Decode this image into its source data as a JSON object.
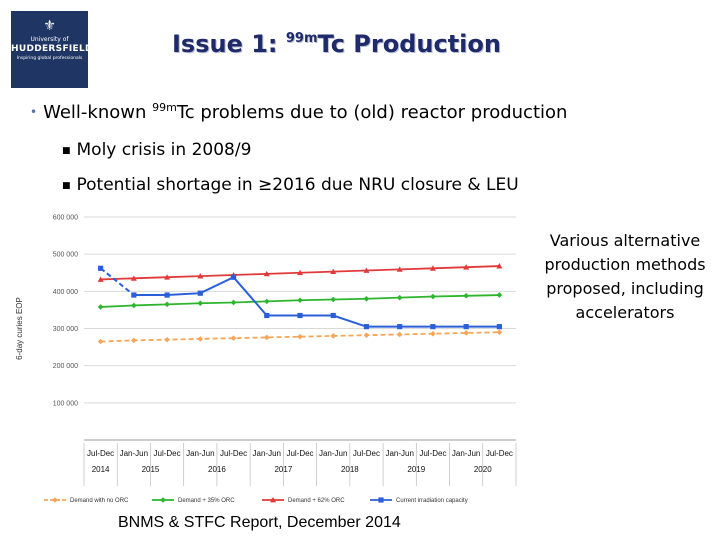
{
  "logo": {
    "line1": "University of",
    "line2": "HUDDERSFIELD",
    "line3": "Inspiring global professionals"
  },
  "slide": {
    "title_prefix": "Issue 1: ",
    "title_sup": "99m",
    "title_suffix": "Tc Production",
    "bullet_prefix": "Well-known ",
    "bullet_sup": "99m",
    "bullet_suffix": "Tc problems due to (old) reactor production",
    "sub_bullets": [
      "Moly crisis in 2008/9",
      "Potential shortage in ≥2016 due NRU closure & LEU"
    ],
    "side_note": "Various alternative production methods proposed, including accelerators",
    "source": "BNMS & STFC Report, December 2014"
  },
  "colors": {
    "title": "#1f2a6b",
    "no_orc": "#f5a65b",
    "orc35": "#2db52d",
    "orc62": "#e23a3a",
    "capacity": "#2b5fd9",
    "grid": "#d9d9d9"
  },
  "chart_data": {
    "type": "line",
    "ylabel": "6-day curies EOP",
    "ylim": [
      0,
      600000
    ],
    "yticks": [
      100000,
      200000,
      300000,
      400000,
      500000,
      600000
    ],
    "ytick_labels": [
      "100 000",
      "200 000",
      "300 000",
      "400 000",
      "500 000",
      "600 000"
    ],
    "categories": [
      "Jul-Dec",
      "Jan-Jun",
      "Jul-Dec",
      "Jan-Jun",
      "Jul-Dec",
      "Jan-Jun",
      "Jul-Dec",
      "Jan-Jun",
      "Jul-Dec",
      "Jan-Jun",
      "Jul-Dec",
      "Jan-Jun",
      "Jul-Dec"
    ],
    "years": [
      "2014",
      "2015",
      "2016",
      "2017",
      "2018",
      "2019",
      "2020"
    ],
    "grid": true,
    "legend_position": "bottom",
    "series": [
      {
        "name": "Demand with no ORC",
        "color": "#f5a65b",
        "dash": true,
        "marker": "diamond",
        "values": [
          265000,
          268000,
          270000,
          272000,
          274000,
          276000,
          278000,
          280000,
          282000,
          284000,
          286000,
          288000,
          290000
        ]
      },
      {
        "name": "Demand + 35% ORC",
        "color": "#2db52d",
        "dash": false,
        "marker": "diamond",
        "values": [
          358000,
          362000,
          365000,
          368000,
          370000,
          373000,
          376000,
          378000,
          380000,
          383000,
          386000,
          388000,
          390000
        ]
      },
      {
        "name": "Demand + 62% ORC",
        "color": "#e23a3a",
        "dash": false,
        "marker": "triangle",
        "values": [
          432000,
          435000,
          438000,
          441000,
          444000,
          447000,
          450000,
          453000,
          456000,
          459000,
          462000,
          465000,
          468000
        ]
      },
      {
        "name": "Current irradiation capacity",
        "color": "#2b5fd9",
        "dash": false,
        "marker": "square",
        "values": [
          462000,
          390000,
          390000,
          395000,
          438000,
          335000,
          335000,
          335000,
          305000,
          305000,
          305000,
          305000,
          305000
        ]
      }
    ]
  }
}
